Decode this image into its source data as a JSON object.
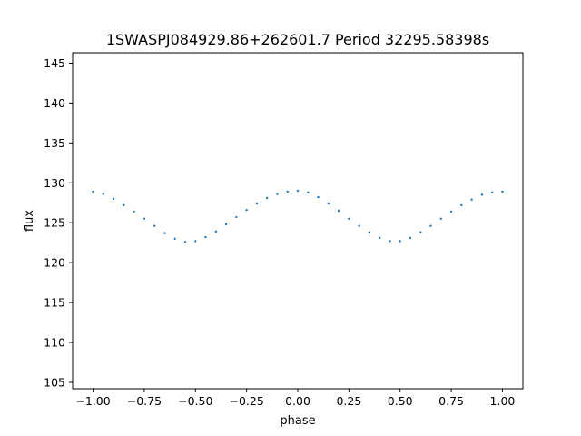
{
  "chart_data": {
    "type": "scatter",
    "title": "1SWASPJ084929.86+262601.7 Period 32295.58398s",
    "xlabel": "phase",
    "ylabel": "flux",
    "xlim": [
      -1.1,
      1.1
    ],
    "ylim": [
      104.2,
      146.3
    ],
    "xticks": [
      -1.0,
      -0.75,
      -0.5,
      -0.25,
      0.0,
      0.25,
      0.5,
      0.75,
      1.0
    ],
    "xtick_labels": [
      "−1.00",
      "−0.75",
      "−0.50",
      "−0.25",
      "0.00",
      "0.25",
      "0.50",
      "0.75",
      "1.00"
    ],
    "yticks": [
      105,
      110,
      115,
      120,
      125,
      130,
      135,
      140,
      145
    ],
    "ytick_labels": [
      "105",
      "110",
      "115",
      "120",
      "125",
      "130",
      "135",
      "140",
      "145"
    ],
    "grid": false,
    "legend": "none",
    "marker_color": "#1f77b4",
    "series": [
      {
        "points": [
          [
            -1.0,
            128.9
          ],
          [
            -0.95,
            128.6
          ],
          [
            -0.9,
            128.0
          ],
          [
            -0.85,
            127.2
          ],
          [
            -0.8,
            126.4
          ],
          [
            -0.75,
            125.5
          ],
          [
            -0.7,
            124.6
          ],
          [
            -0.65,
            123.7
          ],
          [
            -0.6,
            123.0
          ],
          [
            -0.55,
            122.6
          ],
          [
            -0.5,
            122.7
          ],
          [
            -0.45,
            123.2
          ],
          [
            -0.4,
            123.9
          ],
          [
            -0.35,
            124.8
          ],
          [
            -0.3,
            125.7
          ],
          [
            -0.25,
            126.6
          ],
          [
            -0.2,
            127.4
          ],
          [
            -0.15,
            128.1
          ],
          [
            -0.1,
            128.6
          ],
          [
            -0.05,
            128.9
          ],
          [
            0.0,
            129.0
          ],
          [
            0.05,
            128.8
          ],
          [
            0.1,
            128.2
          ],
          [
            0.15,
            127.4
          ],
          [
            0.2,
            126.5
          ],
          [
            0.25,
            125.5
          ],
          [
            0.3,
            124.6
          ],
          [
            0.35,
            123.8
          ],
          [
            0.4,
            123.1
          ],
          [
            0.45,
            122.7
          ],
          [
            0.5,
            122.7
          ],
          [
            0.55,
            123.1
          ],
          [
            0.6,
            123.8
          ],
          [
            0.65,
            124.6
          ],
          [
            0.7,
            125.5
          ],
          [
            0.75,
            126.4
          ],
          [
            0.8,
            127.2
          ],
          [
            0.85,
            127.9
          ],
          [
            0.9,
            128.5
          ],
          [
            0.95,
            128.8
          ],
          [
            1.0,
            128.9
          ]
        ]
      }
    ]
  }
}
